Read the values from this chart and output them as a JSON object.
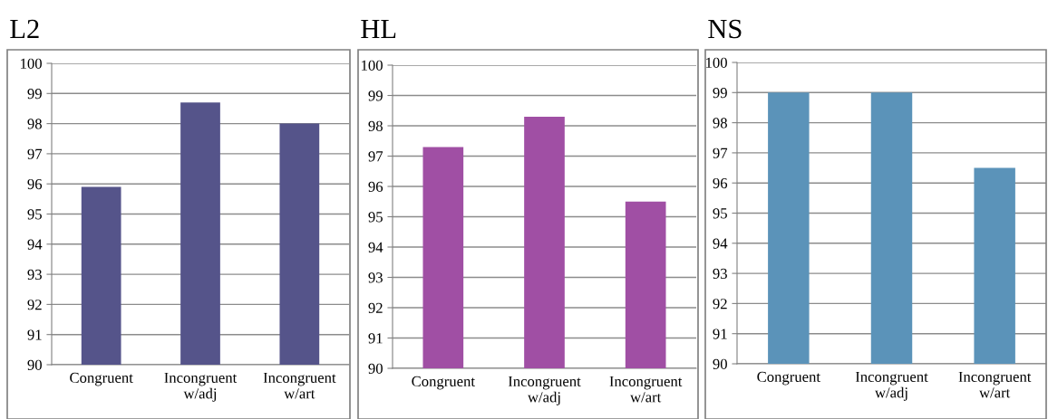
{
  "chart_data": [
    {
      "type": "bar",
      "title": "L2",
      "categories": [
        "Congruent",
        "Incongruent\nw/adj",
        "Incongruent\nw/art"
      ],
      "values": [
        95.9,
        98.7,
        98.0
      ],
      "color": "#55548a",
      "ylim": [
        90,
        100
      ],
      "yticks": [
        90,
        91,
        92,
        93,
        94,
        95,
        96,
        97,
        98,
        99,
        100
      ],
      "grid": "y"
    },
    {
      "type": "bar",
      "title": "HL",
      "categories": [
        "Congruent",
        "Incongruent\nw/adj",
        "Incongruent\nw/art"
      ],
      "values": [
        97.3,
        98.3,
        95.5
      ],
      "color": "#a04fa4",
      "ylim": [
        90,
        100
      ],
      "yticks": [
        90,
        91,
        92,
        93,
        94,
        95,
        96,
        97,
        98,
        99,
        100
      ],
      "grid": "y"
    },
    {
      "type": "bar",
      "title": "NS",
      "categories": [
        "Congruent",
        "Incongruent\nw/adj",
        "Incongruent\nw/art"
      ],
      "values": [
        99.0,
        99.0,
        96.5
      ],
      "color": "#5b93b9",
      "ylim": [
        90,
        100
      ],
      "yticks": [
        90,
        91,
        92,
        93,
        94,
        95,
        96,
        97,
        98,
        99,
        100
      ],
      "grid": "y"
    }
  ]
}
